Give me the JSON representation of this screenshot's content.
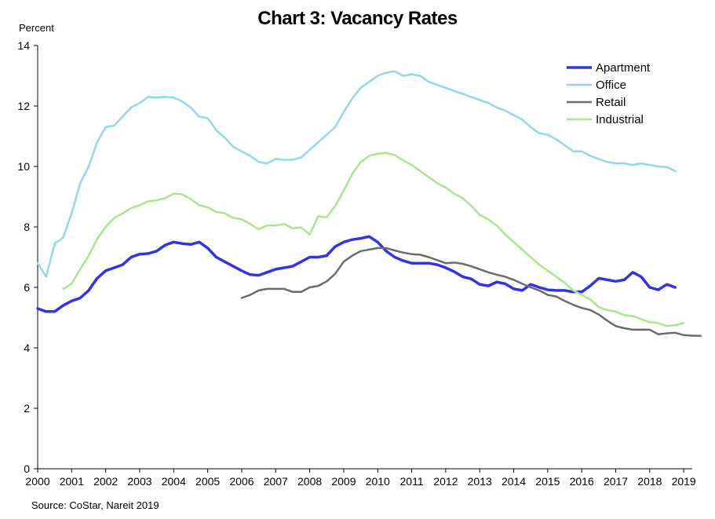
{
  "chart_data": {
    "type": "line",
    "title": "Chart 3: Vacancy Rates",
    "ylabel": "Percent",
    "xlabel": "",
    "source": "Source: CoStar, Nareit 2019",
    "ylim": [
      0,
      14
    ],
    "yticks": [
      0,
      2,
      4,
      6,
      8,
      10,
      12,
      14
    ],
    "xlim": [
      2000,
      2019.25
    ],
    "xticks": [
      2000,
      2001,
      2002,
      2003,
      2004,
      2005,
      2006,
      2007,
      2008,
      2009,
      2010,
      2011,
      2012,
      2013,
      2014,
      2015,
      2016,
      2017,
      2018,
      2019
    ],
    "grid": false,
    "legend_position": "top-right",
    "series": [
      {
        "name": "Apartment",
        "color": "#3333e6",
        "width": 3.5,
        "start": 2000,
        "step": 0.25,
        "values": [
          5.3,
          5.2,
          5.2,
          5.4,
          5.55,
          5.65,
          5.9,
          6.3,
          6.55,
          6.65,
          6.75,
          7.0,
          7.1,
          7.12,
          7.2,
          7.4,
          7.5,
          7.45,
          7.42,
          7.5,
          7.3,
          7.0,
          6.85,
          6.7,
          6.55,
          6.42,
          6.4,
          6.5,
          6.6,
          6.65,
          6.7,
          6.85,
          7.0,
          7.0,
          7.05,
          7.35,
          7.5,
          7.58,
          7.62,
          7.68,
          7.5,
          7.2,
          7.0,
          6.88,
          6.8,
          6.8,
          6.8,
          6.75,
          6.65,
          6.52,
          6.35,
          6.28,
          6.1,
          6.05,
          6.18,
          6.12,
          5.95,
          5.9,
          6.1,
          6.0,
          5.92,
          5.9,
          5.9,
          5.85,
          5.85,
          6.05,
          6.3,
          6.25,
          6.2,
          6.25,
          6.5,
          6.35,
          6.0,
          5.92,
          6.1,
          6.0
        ]
      },
      {
        "name": "Office",
        "color": "#8fd8f0",
        "width": 2.5,
        "start": 2000,
        "step": 0.25,
        "values": [
          6.8,
          6.35,
          7.45,
          7.65,
          8.45,
          9.45,
          10.0,
          10.8,
          11.3,
          11.35,
          11.65,
          11.95,
          12.1,
          12.3,
          12.28,
          12.3,
          12.28,
          12.15,
          11.95,
          11.65,
          11.6,
          11.2,
          10.95,
          10.65,
          10.5,
          10.35,
          10.15,
          10.1,
          10.25,
          10.22,
          10.22,
          10.3,
          10.55,
          10.8,
          11.05,
          11.3,
          11.8,
          12.25,
          12.6,
          12.8,
          13.0,
          13.1,
          13.15,
          13.0,
          13.05,
          13.0,
          12.8,
          12.7,
          12.6,
          12.5,
          12.4,
          12.3,
          12.2,
          12.1,
          11.95,
          11.85,
          11.7,
          11.55,
          11.3,
          11.1,
          11.05,
          10.9,
          10.7,
          10.5,
          10.5,
          10.35,
          10.25,
          10.15,
          10.1,
          10.1,
          10.05,
          10.1,
          10.05,
          10.0,
          9.98,
          9.85
        ]
      },
      {
        "name": "Retail",
        "color": "#6b6b6b",
        "width": 2.5,
        "start": 2006,
        "step": 0.25,
        "values": [
          5.65,
          5.75,
          5.9,
          5.95,
          5.95,
          5.95,
          5.85,
          5.85,
          6.0,
          6.05,
          6.2,
          6.45,
          6.85,
          7.05,
          7.2,
          7.25,
          7.3,
          7.3,
          7.22,
          7.15,
          7.1,
          7.08,
          7.0,
          6.9,
          6.8,
          6.82,
          6.78,
          6.7,
          6.6,
          6.5,
          6.42,
          6.35,
          6.25,
          6.12,
          6.0,
          5.9,
          5.75,
          5.7,
          5.55,
          5.42,
          5.32,
          5.25,
          5.1,
          4.9,
          4.72,
          4.65,
          4.6,
          4.6,
          4.6,
          4.45,
          4.48,
          4.5,
          4.42,
          4.4,
          4.4
        ]
      },
      {
        "name": "Industrial",
        "color": "#a8e888",
        "width": 2.5,
        "start": 2000.75,
        "step": 0.25,
        "values": [
          5.95,
          6.12,
          6.6,
          7.05,
          7.6,
          8.0,
          8.3,
          8.45,
          8.62,
          8.72,
          8.85,
          8.88,
          8.95,
          9.1,
          9.08,
          8.92,
          8.72,
          8.65,
          8.5,
          8.45,
          8.3,
          8.25,
          8.1,
          7.92,
          8.05,
          8.05,
          8.1,
          7.95,
          7.98,
          7.75,
          8.35,
          8.32,
          8.7,
          9.2,
          9.75,
          10.15,
          10.35,
          10.42,
          10.45,
          10.38,
          10.2,
          10.05,
          9.85,
          9.65,
          9.45,
          9.3,
          9.1,
          8.95,
          8.7,
          8.4,
          8.25,
          8.05,
          7.75,
          7.5,
          7.25,
          7.0,
          6.75,
          6.55,
          6.35,
          6.15,
          5.9,
          5.75,
          5.6,
          5.35,
          5.25,
          5.2,
          5.08,
          5.05,
          4.95,
          4.85,
          4.82,
          4.72,
          4.75,
          4.82
        ]
      }
    ]
  }
}
